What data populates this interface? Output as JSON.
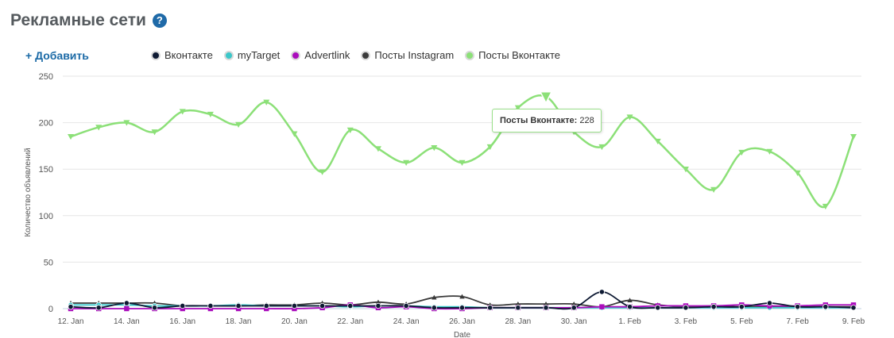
{
  "header": {
    "title": "Рекламные сети",
    "help_icon": "?"
  },
  "toolbar": {
    "add_label": "+ Добавить"
  },
  "legend": [
    {
      "label": "Вконтакте",
      "color": "#0e1a33"
    },
    {
      "label": "myTarget",
      "color": "#3cc7c9"
    },
    {
      "label": "Advertlink",
      "color": "#aa0cbc"
    },
    {
      "label": "Посты Instagram",
      "color": "#3a3a3a"
    },
    {
      "label": "Посты Вконтакте",
      "color": "#8ce078"
    }
  ],
  "tooltip": {
    "series": "Посты Вконтакте:",
    "value": "228"
  },
  "chart_data": {
    "type": "line",
    "title": "",
    "xlabel": "Date",
    "ylabel": "Количество объявлений",
    "ylim": [
      0,
      250
    ],
    "yticks": [
      0,
      50,
      100,
      150,
      200,
      250
    ],
    "grid": true,
    "legend_position": "top",
    "categories": [
      "12. Jan",
      "13. Jan",
      "14. Jan",
      "15. Jan",
      "16. Jan",
      "17. Jan",
      "18. Jan",
      "19. Jan",
      "20. Jan",
      "21. Jan",
      "22. Jan",
      "23. Jan",
      "24. Jan",
      "25. Jan",
      "26. Jan",
      "27. Jan",
      "28. Jan",
      "29. Jan",
      "30. Jan",
      "31. Jan",
      "1. Feb",
      "2. Feb",
      "3. Feb",
      "4. Feb",
      "5. Feb",
      "6. Feb",
      "7. Feb",
      "8. Feb",
      "9. Feb"
    ],
    "xtick_labels": [
      "12. Jan",
      "14. Jan",
      "16. Jan",
      "18. Jan",
      "20. Jan",
      "22. Jan",
      "24. Jan",
      "26. Jan",
      "28. Jan",
      "30. Jan",
      "1. Feb",
      "3. Feb",
      "5. Feb",
      "7. Feb",
      "9. Feb"
    ],
    "series": [
      {
        "name": "Посты Вконтакте",
        "color": "#8ce078",
        "marker": "triangle-down",
        "values": [
          185,
          195,
          200,
          190,
          212,
          209,
          198,
          222,
          188,
          147,
          192,
          172,
          157,
          173,
          157,
          174,
          216,
          228,
          190,
          174,
          206,
          180,
          150,
          128,
          168,
          169,
          146,
          110,
          185
        ]
      },
      {
        "name": "Посты Instagram",
        "color": "#3a3a3a",
        "marker": "triangle",
        "values": [
          6,
          6,
          6,
          6,
          3,
          3,
          3,
          4,
          4,
          6,
          4,
          7,
          5,
          12,
          13,
          4,
          5,
          5,
          5,
          2,
          9,
          4,
          2,
          3,
          2,
          2,
          2,
          2,
          2
        ]
      },
      {
        "name": "Вконтакте",
        "color": "#0e1a33",
        "marker": "circle",
        "values": [
          2,
          1,
          6,
          1,
          3,
          3,
          3,
          3,
          3,
          3,
          3,
          3,
          3,
          1,
          1,
          1,
          1,
          1,
          1,
          18,
          2,
          1,
          1,
          2,
          2,
          6,
          2,
          2,
          1
        ]
      },
      {
        "name": "myTarget",
        "color": "#3cc7c9",
        "marker": "circle",
        "values": [
          4,
          4,
          4,
          3,
          3,
          3,
          4,
          3,
          3,
          3,
          2,
          3,
          3,
          2,
          2,
          1,
          1,
          1,
          1,
          1,
          1,
          1,
          1,
          1,
          1,
          1,
          1,
          1,
          1
        ]
      },
      {
        "name": "Advertlink",
        "color": "#aa0cbc",
        "marker": "square",
        "values": [
          0,
          0,
          0,
          0,
          0,
          0,
          0,
          0,
          0,
          1,
          4,
          1,
          2,
          0,
          0,
          1,
          1,
          1,
          1,
          2,
          2,
          3,
          3,
          3,
          4,
          3,
          3,
          4,
          4
        ]
      }
    ],
    "highlight": {
      "series": "Посты Вконтакте",
      "category": "29. Jan",
      "value": 228
    }
  }
}
